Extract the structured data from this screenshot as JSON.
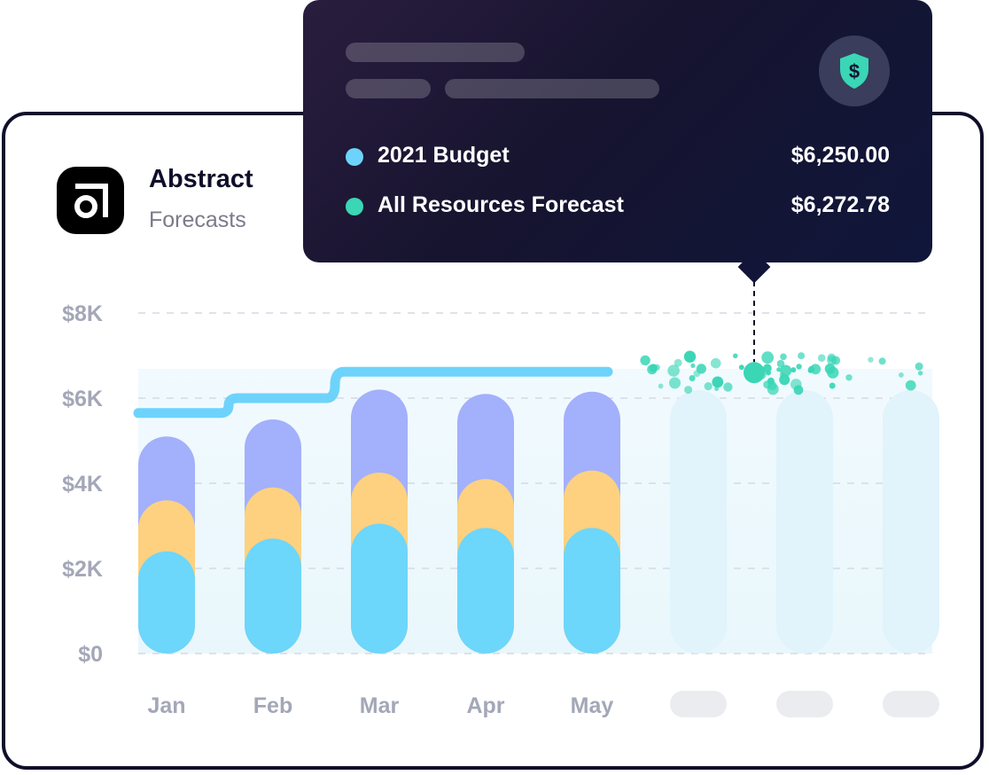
{
  "brand": {
    "name": "Abstract",
    "subtitle": "Forecasts",
    "logo_icon": "abstract-logo-icon"
  },
  "tooltip": {
    "icon": "dollar-shield-icon",
    "rows": [
      {
        "label": "2021 Budget",
        "value": "$6,250.00",
        "color": "#6dd3fb"
      },
      {
        "label": "All Resources Forecast",
        "value": "$6,272.78",
        "color": "#3ad6b6"
      }
    ]
  },
  "chart_data": {
    "type": "bar",
    "stacked": true,
    "ylim": [
      0,
      8000
    ],
    "yticks": [
      0,
      2000,
      4000,
      6000,
      8000
    ],
    "ytick_labels": [
      "$0",
      "$2K",
      "$4K",
      "$6K",
      "$8K"
    ],
    "grid": true,
    "categories": [
      "Jan",
      "Feb",
      "Mar",
      "Apr",
      "May",
      "",
      "",
      ""
    ],
    "series": [
      {
        "values": [
          2400,
          2700,
          3050,
          2950,
          2950,
          null,
          null,
          null
        ],
        "color": "#6dd6fb"
      },
      {
        "values": [
          1200,
          1200,
          1200,
          1150,
          1350,
          null,
          null,
          null
        ],
        "color": "#fdd17f"
      },
      {
        "values": [
          1500,
          1600,
          1950,
          2000,
          1850,
          null,
          null,
          null
        ],
        "color": "#a3b0fb"
      }
    ],
    "budget_line": {
      "x": [
        0,
        1,
        2,
        3,
        4
      ],
      "values": [
        5650,
        6000,
        6620,
        6620,
        6620
      ],
      "color": "#6dd3fb"
    },
    "forecast_marker_value": 6600,
    "colors": {
      "grid": "#d5d9e3",
      "axis_label": "#a3a7b7",
      "placeholder_bar": "#e1f3fb",
      "placeholder_label": "#ebecef",
      "forecast_dots": "#3ad6b6",
      "card_border": "#0f0f2a"
    }
  }
}
